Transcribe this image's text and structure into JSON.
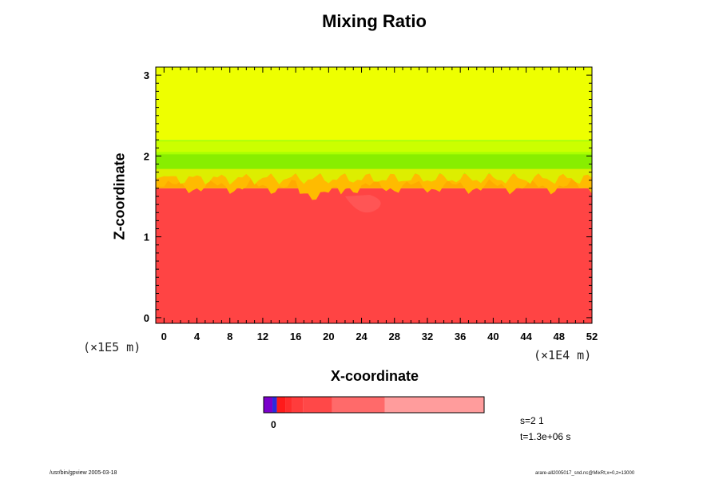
{
  "chart_data": {
    "type": "heatmap",
    "title": "Mixing Ratio",
    "xlabel": "X-coordinate",
    "ylabel": "Z-coordinate",
    "x_multiplier": "(×1E4 m)",
    "z_multiplier": "(×1E5 m)",
    "xlim": [
      -1,
      52
    ],
    "ylim": [
      -0.07,
      3.1
    ],
    "x_ticks": [
      "0",
      "4",
      "8",
      "12",
      "16",
      "20",
      "24",
      "28",
      "32",
      "36",
      "40",
      "44",
      "48",
      "52"
    ],
    "y_ticks": [
      "0",
      "1",
      "2",
      "3"
    ],
    "field_description_levels": [
      {
        "z_from": -0.07,
        "z_to": 1.6,
        "color": "#ff4444"
      },
      {
        "z_from": 1.6,
        "z_to": 1.75,
        "color": "#ffaa00"
      },
      {
        "z_from": 1.75,
        "z_to": 2.2,
        "color": "#aaff00"
      },
      {
        "z_from": 2.2,
        "z_to": 3.1,
        "color": "#eeff00"
      }
    ],
    "colorbar": {
      "segments": [
        "#7b00cc",
        "#2b2bdd",
        "#ff1a1a",
        "#ff2c2c",
        "#ff3c3c",
        "#ff4848",
        "#ff6a6a",
        "#ff8585",
        "#ff9c9c"
      ],
      "zero_label": "0"
    },
    "grid": false
  },
  "annotations": {
    "s_label": "s=2 1",
    "t_label": "t=1.3e+06 s"
  },
  "footer": {
    "left": "/usr/bin/gpview 2005-03-18",
    "right": "arare-all2005017_snd.nc@MixRt,x=0,z=13000"
  },
  "colors": {
    "background": "#ffffff",
    "frame": "#000000"
  }
}
